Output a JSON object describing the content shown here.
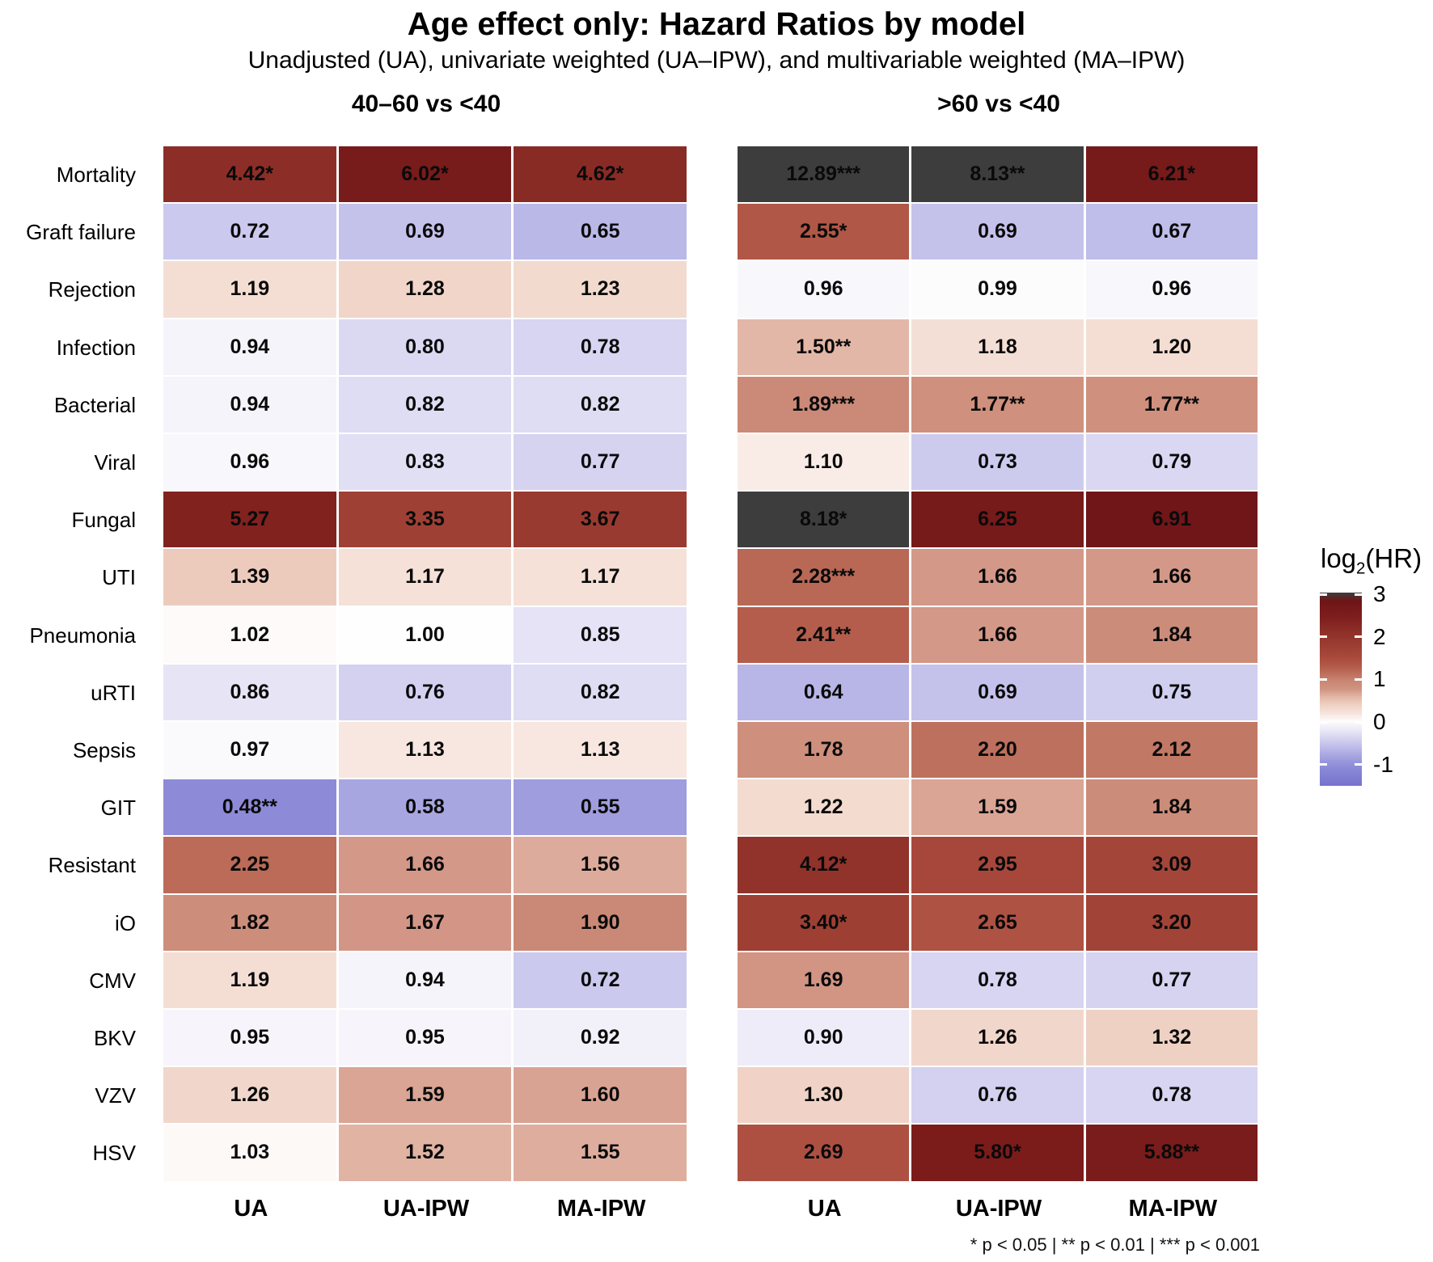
{
  "title": "Age effect only: Hazard Ratios by model",
  "subtitle": "Unadjusted (UA), univariate weighted (UA–IPW), and multivariable weighted (MA–IPW)",
  "footnote": "* p < 0.05  |  ** p < 0.01  |  *** p < 0.001",
  "legend": {
    "title_prefix": "log",
    "title_sub": "2",
    "title_suffix": "(HR)",
    "tick_values": [
      3,
      2,
      1,
      0,
      -1
    ],
    "tick_labels": [
      "3",
      "2",
      "1",
      "0",
      "-1"
    ],
    "bar_top_value": 3.04,
    "bar_bottom_value": -1.5
  },
  "chart_data": {
    "type": "heatmap",
    "value_label": "log2(HR)",
    "rows": [
      "Mortality",
      "Graft failure",
      "Rejection",
      "Infection",
      "Bacterial",
      "Viral",
      "Fungal",
      "UTI",
      "Pneumonia",
      "uRTI",
      "Sepsis",
      "GIT",
      "Resistant",
      "iO",
      "CMV",
      "BKV",
      "VZV",
      "HSV"
    ],
    "columns": [
      "UA",
      "UA-IPW",
      "MA-IPW"
    ],
    "panels": [
      {
        "header": "40–60 vs <40",
        "cells": [
          [
            "4.42*",
            "6.02*",
            "4.62*"
          ],
          [
            "0.72",
            "0.69",
            "0.65"
          ],
          [
            "1.19",
            "1.28",
            "1.23"
          ],
          [
            "0.94",
            "0.80",
            "0.78"
          ],
          [
            "0.94",
            "0.82",
            "0.82"
          ],
          [
            "0.96",
            "0.83",
            "0.77"
          ],
          [
            "5.27",
            "3.35",
            "3.67"
          ],
          [
            "1.39",
            "1.17",
            "1.17"
          ],
          [
            "1.02",
            "1.00",
            "0.85"
          ],
          [
            "0.86",
            "0.76",
            "0.82"
          ],
          [
            "0.97",
            "1.13",
            "1.13"
          ],
          [
            "0.48**",
            "0.58",
            "0.55"
          ],
          [
            "2.25",
            "1.66",
            "1.56"
          ],
          [
            "1.82",
            "1.67",
            "1.90"
          ],
          [
            "1.19",
            "0.94",
            "0.72"
          ],
          [
            "0.95",
            "0.95",
            "0.92"
          ],
          [
            "1.26",
            "1.59",
            "1.60"
          ],
          [
            "1.03",
            "1.52",
            "1.55"
          ]
        ]
      },
      {
        "header": ">60 vs <40",
        "cells": [
          [
            "12.89***",
            "8.13**",
            "6.21*"
          ],
          [
            "2.55*",
            "0.69",
            "0.67"
          ],
          [
            "0.96",
            "0.99",
            "0.96"
          ],
          [
            "1.50**",
            "1.18",
            "1.20"
          ],
          [
            "1.89***",
            "1.77**",
            "1.77**"
          ],
          [
            "1.10",
            "0.73",
            "0.79"
          ],
          [
            "8.18*",
            "6.25",
            "6.91"
          ],
          [
            "2.28***",
            "1.66",
            "1.66"
          ],
          [
            "2.41**",
            "1.66",
            "1.84"
          ],
          [
            "0.64",
            "0.69",
            "0.75"
          ],
          [
            "1.78",
            "2.20",
            "2.12"
          ],
          [
            "1.22",
            "1.59",
            "1.84"
          ],
          [
            "4.12*",
            "2.95",
            "3.09"
          ],
          [
            "3.40*",
            "2.65",
            "3.20"
          ],
          [
            "1.69",
            "0.78",
            "0.77"
          ],
          [
            "0.90",
            "1.26",
            "1.32"
          ],
          [
            "1.30",
            "0.76",
            "0.78"
          ],
          [
            "2.69",
            "5.80*",
            "5.88**"
          ]
        ]
      }
    ],
    "color_scale": {
      "type": "diverging",
      "transform": "log2",
      "domain": [
        -1.5,
        3
      ],
      "out_of_range_high_color": "#3d3d3d",
      "anchors": [
        [
          -1.5,
          "#7573cd"
        ],
        [
          -1.0,
          "#908ed8"
        ],
        [
          -0.5,
          "#c8c6ec"
        ],
        [
          -0.25,
          "#e3e1f4"
        ],
        [
          0.0,
          "#fffefe"
        ],
        [
          0.25,
          "#f4ded4"
        ],
        [
          0.5,
          "#ecc9b9"
        ],
        [
          0.75,
          "#d29484"
        ],
        [
          1.0,
          "#c78570"
        ],
        [
          1.25,
          "#b55f4d"
        ],
        [
          1.5,
          "#aa4a3d"
        ],
        [
          2.0,
          "#93352c"
        ],
        [
          2.5,
          "#7c1d1c"
        ],
        [
          3.0,
          "#681115"
        ]
      ]
    }
  }
}
